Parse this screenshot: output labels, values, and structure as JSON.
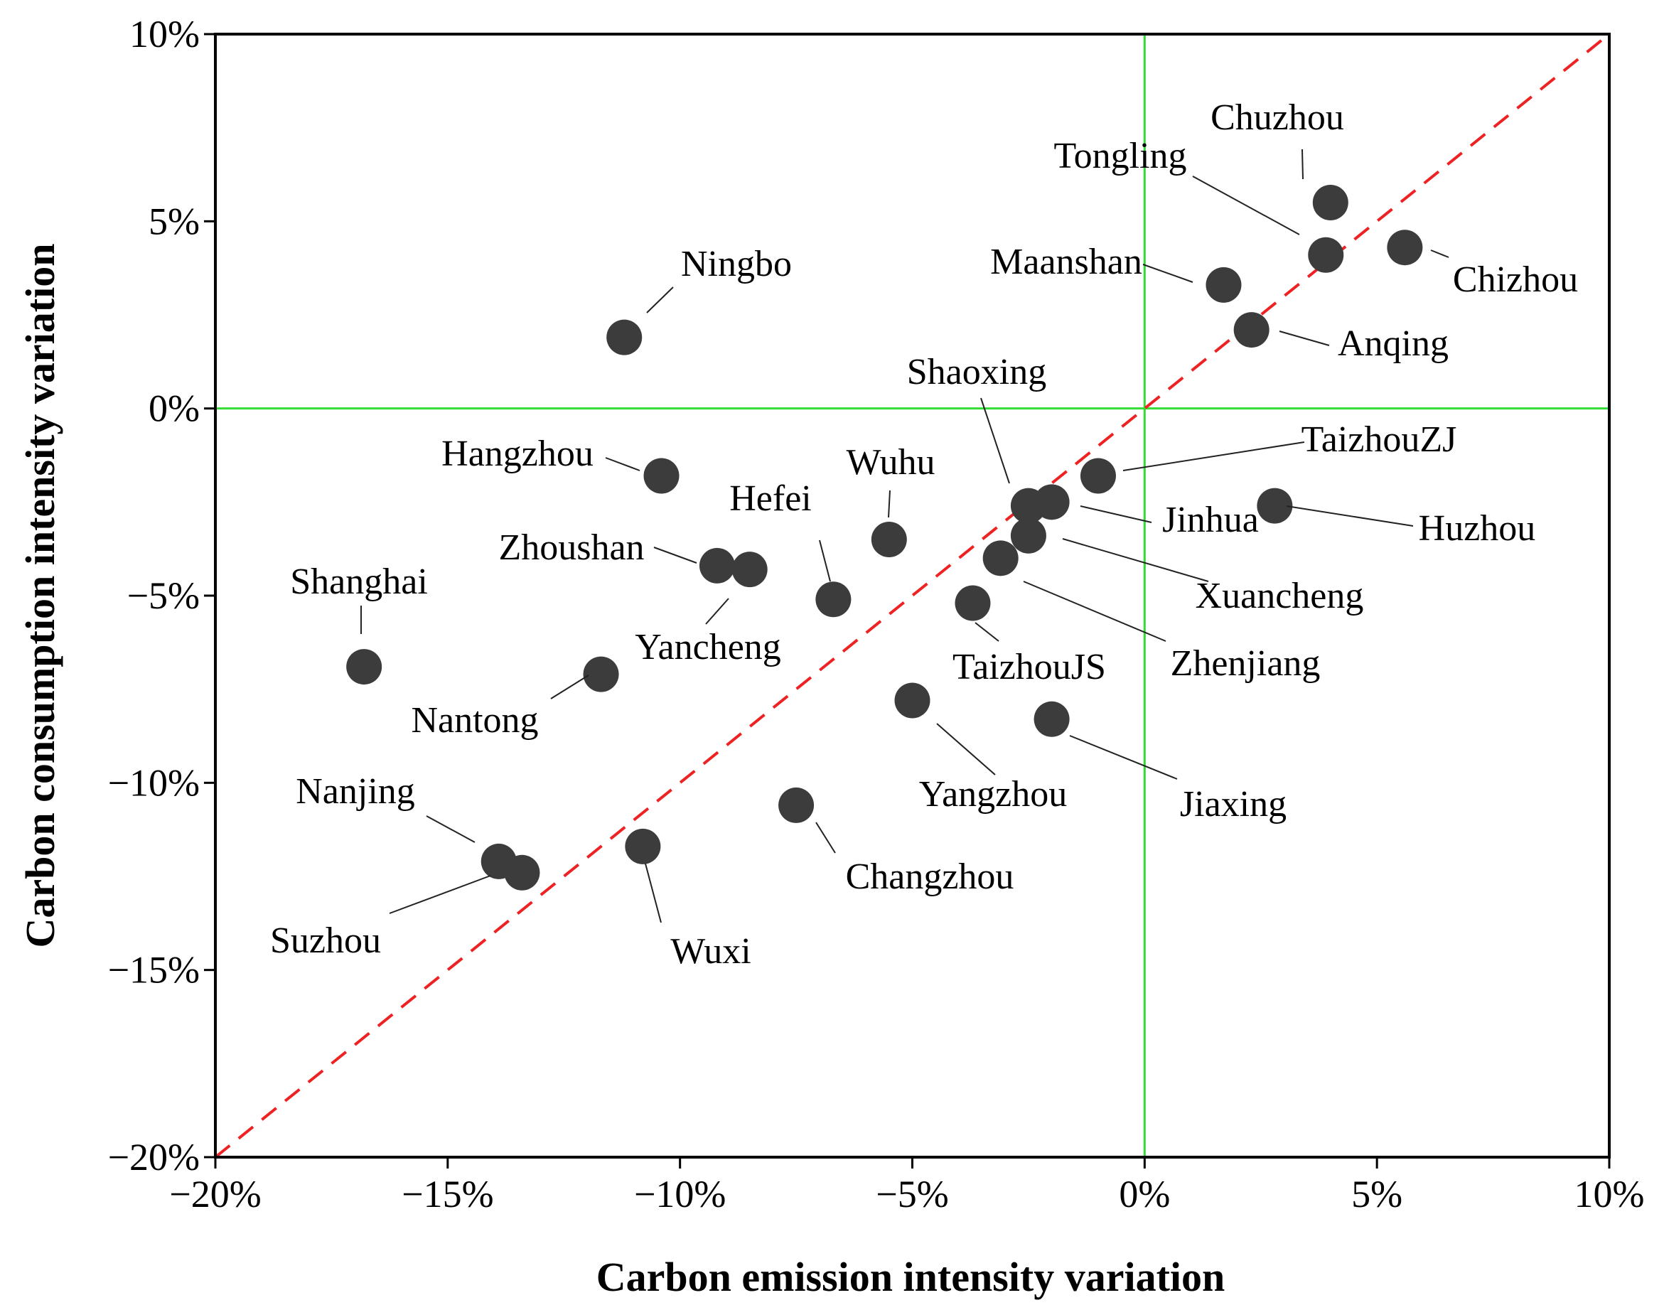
{
  "chart_data": {
    "type": "scatter",
    "xlabel": "Carbon emission intensity variation",
    "ylabel": "Carbon consumption intensity variation",
    "xlim": [
      -20,
      10
    ],
    "ylim": [
      -20,
      10
    ],
    "xticks": [
      -20,
      -15,
      -10,
      -5,
      0,
      5,
      10
    ],
    "yticks": [
      -20,
      -15,
      -10,
      -5,
      0,
      5,
      10
    ],
    "xtick_labels": [
      "−20%",
      "−15%",
      "−10%",
      "−5%",
      "0%",
      "5%",
      "10%"
    ],
    "ytick_labels": [
      "−20%",
      "−15%",
      "−10%",
      "−5%",
      "0%",
      "5%",
      "10%"
    ],
    "grid": false,
    "reference_lines": [
      {
        "type": "vertical",
        "x": 0,
        "color": "#33dd33"
      },
      {
        "type": "horizontal",
        "y": 0,
        "color": "#33dd33"
      },
      {
        "type": "diagonal",
        "from": [
          -20,
          -20
        ],
        "to": [
          10,
          10
        ],
        "style": "dashed",
        "color": "#ee2222"
      }
    ],
    "marker_color": "#3c3c3c",
    "points": [
      {
        "name": "Chuzhou",
        "x": 4.0,
        "y": 5.5
      },
      {
        "name": "Tongling",
        "x": 3.9,
        "y": 4.1
      },
      {
        "name": "Chizhou",
        "x": 5.6,
        "y": 4.3
      },
      {
        "name": "Maanshan",
        "x": 1.7,
        "y": 3.3
      },
      {
        "name": "Anqing",
        "x": 2.3,
        "y": 2.1
      },
      {
        "name": "Ningbo",
        "x": -11.2,
        "y": 1.9
      },
      {
        "name": "Hangzhou",
        "x": -10.4,
        "y": -1.8
      },
      {
        "name": "TaizhouZJ",
        "x": -1.0,
        "y": -1.8
      },
      {
        "name": "Shaoxing",
        "x": -2.5,
        "y": -2.6
      },
      {
        "name": "Jinhua",
        "x": -2.0,
        "y": -2.5
      },
      {
        "name": "Huzhou",
        "x": 2.8,
        "y": -2.6
      },
      {
        "name": "Wuhu",
        "x": -5.5,
        "y": -3.5
      },
      {
        "name": "Xuancheng",
        "x": -2.5,
        "y": -3.4
      },
      {
        "name": "Zhenjiang",
        "x": -3.1,
        "y": -4.0
      },
      {
        "name": "Zhoushan",
        "x": -9.2,
        "y": -4.2
      },
      {
        "name": "Yancheng",
        "x": -8.5,
        "y": -4.3
      },
      {
        "name": "Hefei",
        "x": -6.7,
        "y": -5.1
      },
      {
        "name": "TaizhouJS",
        "x": -3.7,
        "y": -5.2
      },
      {
        "name": "Shanghai",
        "x": -16.8,
        "y": -6.9
      },
      {
        "name": "Nantong",
        "x": -11.7,
        "y": -7.1
      },
      {
        "name": "Yangzhou",
        "x": -5.0,
        "y": -7.8
      },
      {
        "name": "Jiaxing",
        "x": -2.0,
        "y": -8.3
      },
      {
        "name": "Changzhou",
        "x": -7.5,
        "y": -10.6
      },
      {
        "name": "Wuxi",
        "x": -10.8,
        "y": -11.7
      },
      {
        "name": "Nanjing",
        "x": -13.9,
        "y": -12.1
      },
      {
        "name": "Suzhou",
        "x": -13.4,
        "y": -12.4
      }
    ]
  }
}
